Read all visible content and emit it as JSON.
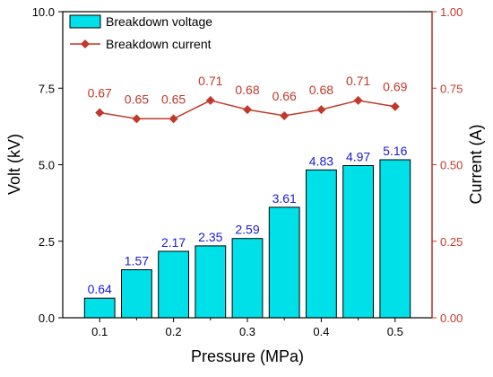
{
  "chart_data": {
    "type": "bar",
    "xlabel": "Pressure (MPa)",
    "ylabel_left": "Volt (kV)",
    "ylabel_right": "Current (A)",
    "x": [
      0.1,
      0.15,
      0.2,
      0.25,
      0.3,
      0.35,
      0.4,
      0.45,
      0.5
    ],
    "xlim": [
      0.05,
      0.55
    ],
    "xticks": [
      "0.1",
      "0.2",
      "0.3",
      "0.4",
      "0.5"
    ],
    "ylim_left": [
      0,
      10
    ],
    "yticks_left": [
      "0.0",
      "2.5",
      "5.0",
      "7.5",
      "10.0"
    ],
    "ylim_right": [
      0,
      1
    ],
    "yticks_right": [
      "0.00",
      "0.25",
      "0.50",
      "0.75",
      "1.00"
    ],
    "series": [
      {
        "name": "Breakdown voltage",
        "kind": "bar",
        "axis": "left",
        "values": [
          0.64,
          1.57,
          2.17,
          2.35,
          2.59,
          3.61,
          4.83,
          4.97,
          5.16
        ],
        "labels": [
          "0.64",
          "1.57",
          "2.17",
          "2.35",
          "2.59",
          "3.61",
          "4.83",
          "4.97",
          "5.16"
        ],
        "color": "#00e0e8",
        "label_color": "#1a1ad6"
      },
      {
        "name": "Breakdown current",
        "kind": "line",
        "axis": "right",
        "values": [
          0.67,
          0.65,
          0.65,
          0.71,
          0.68,
          0.66,
          0.68,
          0.71,
          0.69
        ],
        "labels": [
          "0.67",
          "0.65",
          "0.65",
          "0.71",
          "0.68",
          "0.66",
          "0.68",
          "0.71",
          "0.69"
        ],
        "color": "#c0392b",
        "label_color": "#c0392b"
      }
    ],
    "legend": "top-left",
    "grid": false
  }
}
